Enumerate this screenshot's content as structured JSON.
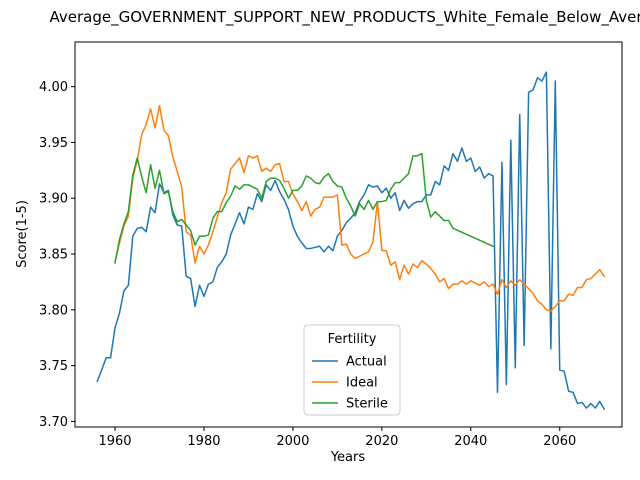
{
  "chart_data": {
    "type": "line",
    "title": "Average_GOVERNMENT_SUPPORT_NEW_PRODUCTS_White_Female_Below_Average",
    "xlabel": "Years",
    "ylabel": "Score(1-5)",
    "xlim": [
      1951,
      2074
    ],
    "ylim": [
      3.695,
      4.04
    ],
    "xticks": [
      1960,
      1980,
      2000,
      2020,
      2040,
      2060
    ],
    "yticks": [
      3.7,
      3.75,
      3.8,
      3.85,
      3.9,
      3.95,
      4.0
    ],
    "ytick_labels": [
      "3.70",
      "3.75",
      "3.80",
      "3.85",
      "3.90",
      "3.95",
      "4.00"
    ],
    "grid": false,
    "legend": {
      "title": "Fertility",
      "placement": "lower-center"
    },
    "series": [
      {
        "name": "Actual",
        "color": "#1f77b4",
        "x": [
          1956,
          1957,
          1958,
          1959,
          1960,
          1961,
          1962,
          1963,
          1964,
          1965,
          1966,
          1967,
          1968,
          1969,
          1970,
          1971,
          1972,
          1973,
          1974,
          1975,
          1976,
          1977,
          1978,
          1979,
          1980,
          1981,
          1982,
          1983,
          1984,
          1985,
          1986,
          1987,
          1988,
          1989,
          1990,
          1991,
          1992,
          1993,
          1994,
          1995,
          1996,
          1997,
          1998,
          1999,
          2000,
          2001,
          2002,
          2003,
          2004,
          2005,
          2006,
          2007,
          2008,
          2009,
          2010,
          2011,
          2012,
          2013,
          2014,
          2015,
          2016,
          2017,
          2018,
          2019,
          2020,
          2021,
          2022,
          2023,
          2024,
          2025,
          2026,
          2027,
          2028,
          2029,
          2030,
          2031,
          2032,
          2033,
          2034,
          2035,
          2036,
          2037,
          2038,
          2039,
          2040,
          2041,
          2042,
          2043,
          2044,
          2045,
          2046,
          2047,
          2048,
          2049,
          2050,
          2051,
          2052,
          2053,
          2054,
          2055,
          2056,
          2057,
          2058,
          2059,
          2060,
          2061,
          2062,
          2063,
          2064,
          2065,
          2066,
          2067,
          2068,
          2069,
          2070
        ],
        "y": [
          3.736,
          3.746,
          3.757,
          3.757,
          3.784,
          3.797,
          3.817,
          3.822,
          3.866,
          3.873,
          3.874,
          3.87,
          3.892,
          3.887,
          3.913,
          3.905,
          3.907,
          3.885,
          3.876,
          3.875,
          3.83,
          3.828,
          3.803,
          3.822,
          3.812,
          3.823,
          3.825,
          3.838,
          3.843,
          3.85,
          3.867,
          3.877,
          3.887,
          3.877,
          3.892,
          3.89,
          3.904,
          3.897,
          3.912,
          3.907,
          3.916,
          3.906,
          3.899,
          3.89,
          3.875,
          3.866,
          3.86,
          3.855,
          3.855,
          3.856,
          3.857,
          3.852,
          3.857,
          3.853,
          3.866,
          3.871,
          3.878,
          3.882,
          3.887,
          3.897,
          3.903,
          3.912,
          3.91,
          3.911,
          3.905,
          3.909,
          3.9,
          3.905,
          3.889,
          3.898,
          3.891,
          3.895,
          3.897,
          3.897,
          3.903,
          3.903,
          3.915,
          3.912,
          3.929,
          3.925,
          3.94,
          3.933,
          3.945,
          3.933,
          3.936,
          3.924,
          3.928,
          3.918,
          3.922,
          3.92,
          3.726,
          3.932,
          3.733,
          3.952,
          3.748,
          3.975,
          3.768,
          3.995,
          3.997,
          4.008,
          4.005,
          4.013,
          3.765,
          4.005,
          3.746,
          3.745,
          3.727,
          3.726,
          3.716,
          3.717,
          3.712,
          3.716,
          3.712,
          3.718,
          3.711
        ]
      },
      {
        "name": "Ideal",
        "color": "#ff7f0e",
        "x": [
          1960,
          1961,
          1962,
          1963,
          1964,
          1965,
          1966,
          1967,
          1968,
          1969,
          1970,
          1971,
          1972,
          1973,
          1974,
          1975,
          1976,
          1977,
          1978,
          1979,
          1980,
          1981,
          1982,
          1983,
          1984,
          1985,
          1986,
          1987,
          1988,
          1989,
          1990,
          1991,
          1992,
          1993,
          1994,
          1995,
          1996,
          1997,
          1998,
          1999,
          2000,
          2001,
          2002,
          2003,
          2004,
          2005,
          2006,
          2007,
          2008,
          2009,
          2010,
          2011,
          2012,
          2013,
          2014,
          2015,
          2016,
          2017,
          2018,
          2019,
          2020,
          2021,
          2022,
          2023,
          2024,
          2025,
          2026,
          2027,
          2028,
          2029,
          2030,
          2031,
          2032,
          2033,
          2034,
          2035,
          2036,
          2037,
          2038,
          2039,
          2040,
          2041,
          2042,
          2043,
          2044,
          2045,
          2046,
          2047,
          2048,
          2049,
          2050,
          2051,
          2052,
          2053,
          2054,
          2055,
          2056,
          2057,
          2058,
          2059,
          2060,
          2061,
          2062,
          2063,
          2064,
          2065,
          2066,
          2067,
          2068,
          2069,
          2070
        ],
        "y": [
          3.843,
          3.86,
          3.875,
          3.884,
          3.918,
          3.934,
          3.957,
          3.966,
          3.98,
          3.963,
          3.983,
          3.961,
          3.956,
          3.937,
          3.924,
          3.91,
          3.87,
          3.867,
          3.842,
          3.857,
          3.85,
          3.858,
          3.87,
          3.883,
          3.896,
          3.905,
          3.926,
          3.931,
          3.936,
          3.923,
          3.938,
          3.936,
          3.938,
          3.924,
          3.927,
          3.924,
          3.93,
          3.931,
          3.915,
          3.915,
          3.904,
          3.897,
          3.889,
          3.897,
          3.884,
          3.89,
          3.892,
          3.901,
          3.901,
          3.901,
          3.903,
          3.858,
          3.859,
          3.85,
          3.846,
          3.848,
          3.85,
          3.852,
          3.861,
          3.897,
          3.853,
          3.853,
          3.84,
          3.843,
          3.827,
          3.84,
          3.832,
          3.841,
          3.838,
          3.844,
          3.841,
          3.837,
          3.832,
          3.825,
          3.828,
          3.819,
          3.823,
          3.823,
          3.826,
          3.823,
          3.826,
          3.824,
          3.822,
          3.825,
          3.821,
          3.823,
          3.814,
          3.827,
          3.82,
          3.826,
          3.822,
          3.827,
          3.823,
          3.819,
          3.815,
          3.808,
          3.805,
          3.8,
          3.799,
          3.803,
          3.808,
          3.808,
          3.814,
          3.813,
          3.82,
          3.82,
          3.827,
          3.828,
          3.832,
          3.836,
          3.83
        ]
      },
      {
        "name": "Sterile",
        "color": "#2ca02c",
        "x": [
          1960,
          1961,
          1962,
          1963,
          1964,
          1965,
          1966,
          1967,
          1968,
          1969,
          1970,
          1971,
          1972,
          1973,
          1974,
          1975,
          1976,
          1977,
          1978,
          1979,
          1980,
          1981,
          1982,
          1983,
          1984,
          1985,
          1986,
          1987,
          1988,
          1989,
          1990,
          1991,
          1992,
          1993,
          1994,
          1995,
          1996,
          1997,
          1998,
          1999,
          2000,
          2001,
          2002,
          2003,
          2004,
          2005,
          2006,
          2007,
          2008,
          2009,
          2010,
          2011,
          2012,
          2013,
          2014,
          2015,
          2016,
          2017,
          2018,
          2019,
          2020,
          2021,
          2022,
          2023,
          2024,
          2025,
          2026,
          2027,
          2028,
          2029,
          2030,
          2031,
          2032,
          2033,
          2034,
          2035,
          2036,
          2045
        ],
        "y": [
          3.842,
          3.863,
          3.877,
          3.888,
          3.921,
          3.936,
          3.919,
          3.905,
          3.93,
          3.909,
          3.925,
          3.904,
          3.906,
          3.888,
          3.879,
          3.881,
          3.876,
          3.871,
          3.858,
          3.866,
          3.866,
          3.867,
          3.882,
          3.888,
          3.888,
          3.896,
          3.902,
          3.911,
          3.908,
          3.912,
          3.912,
          3.91,
          3.908,
          3.9,
          3.915,
          3.918,
          3.918,
          3.916,
          3.909,
          3.9,
          3.907,
          3.907,
          3.911,
          3.92,
          3.918,
          3.914,
          3.913,
          3.919,
          3.922,
          3.915,
          3.911,
          3.91,
          3.9,
          3.893,
          3.884,
          3.895,
          3.89,
          3.898,
          3.89,
          3.897,
          3.897,
          3.898,
          3.908,
          3.914,
          3.914,
          3.918,
          3.922,
          3.938,
          3.938,
          3.94,
          3.898,
          3.883,
          3.888,
          3.884,
          3.88,
          3.88,
          3.873,
          3.857
        ]
      }
    ]
  }
}
